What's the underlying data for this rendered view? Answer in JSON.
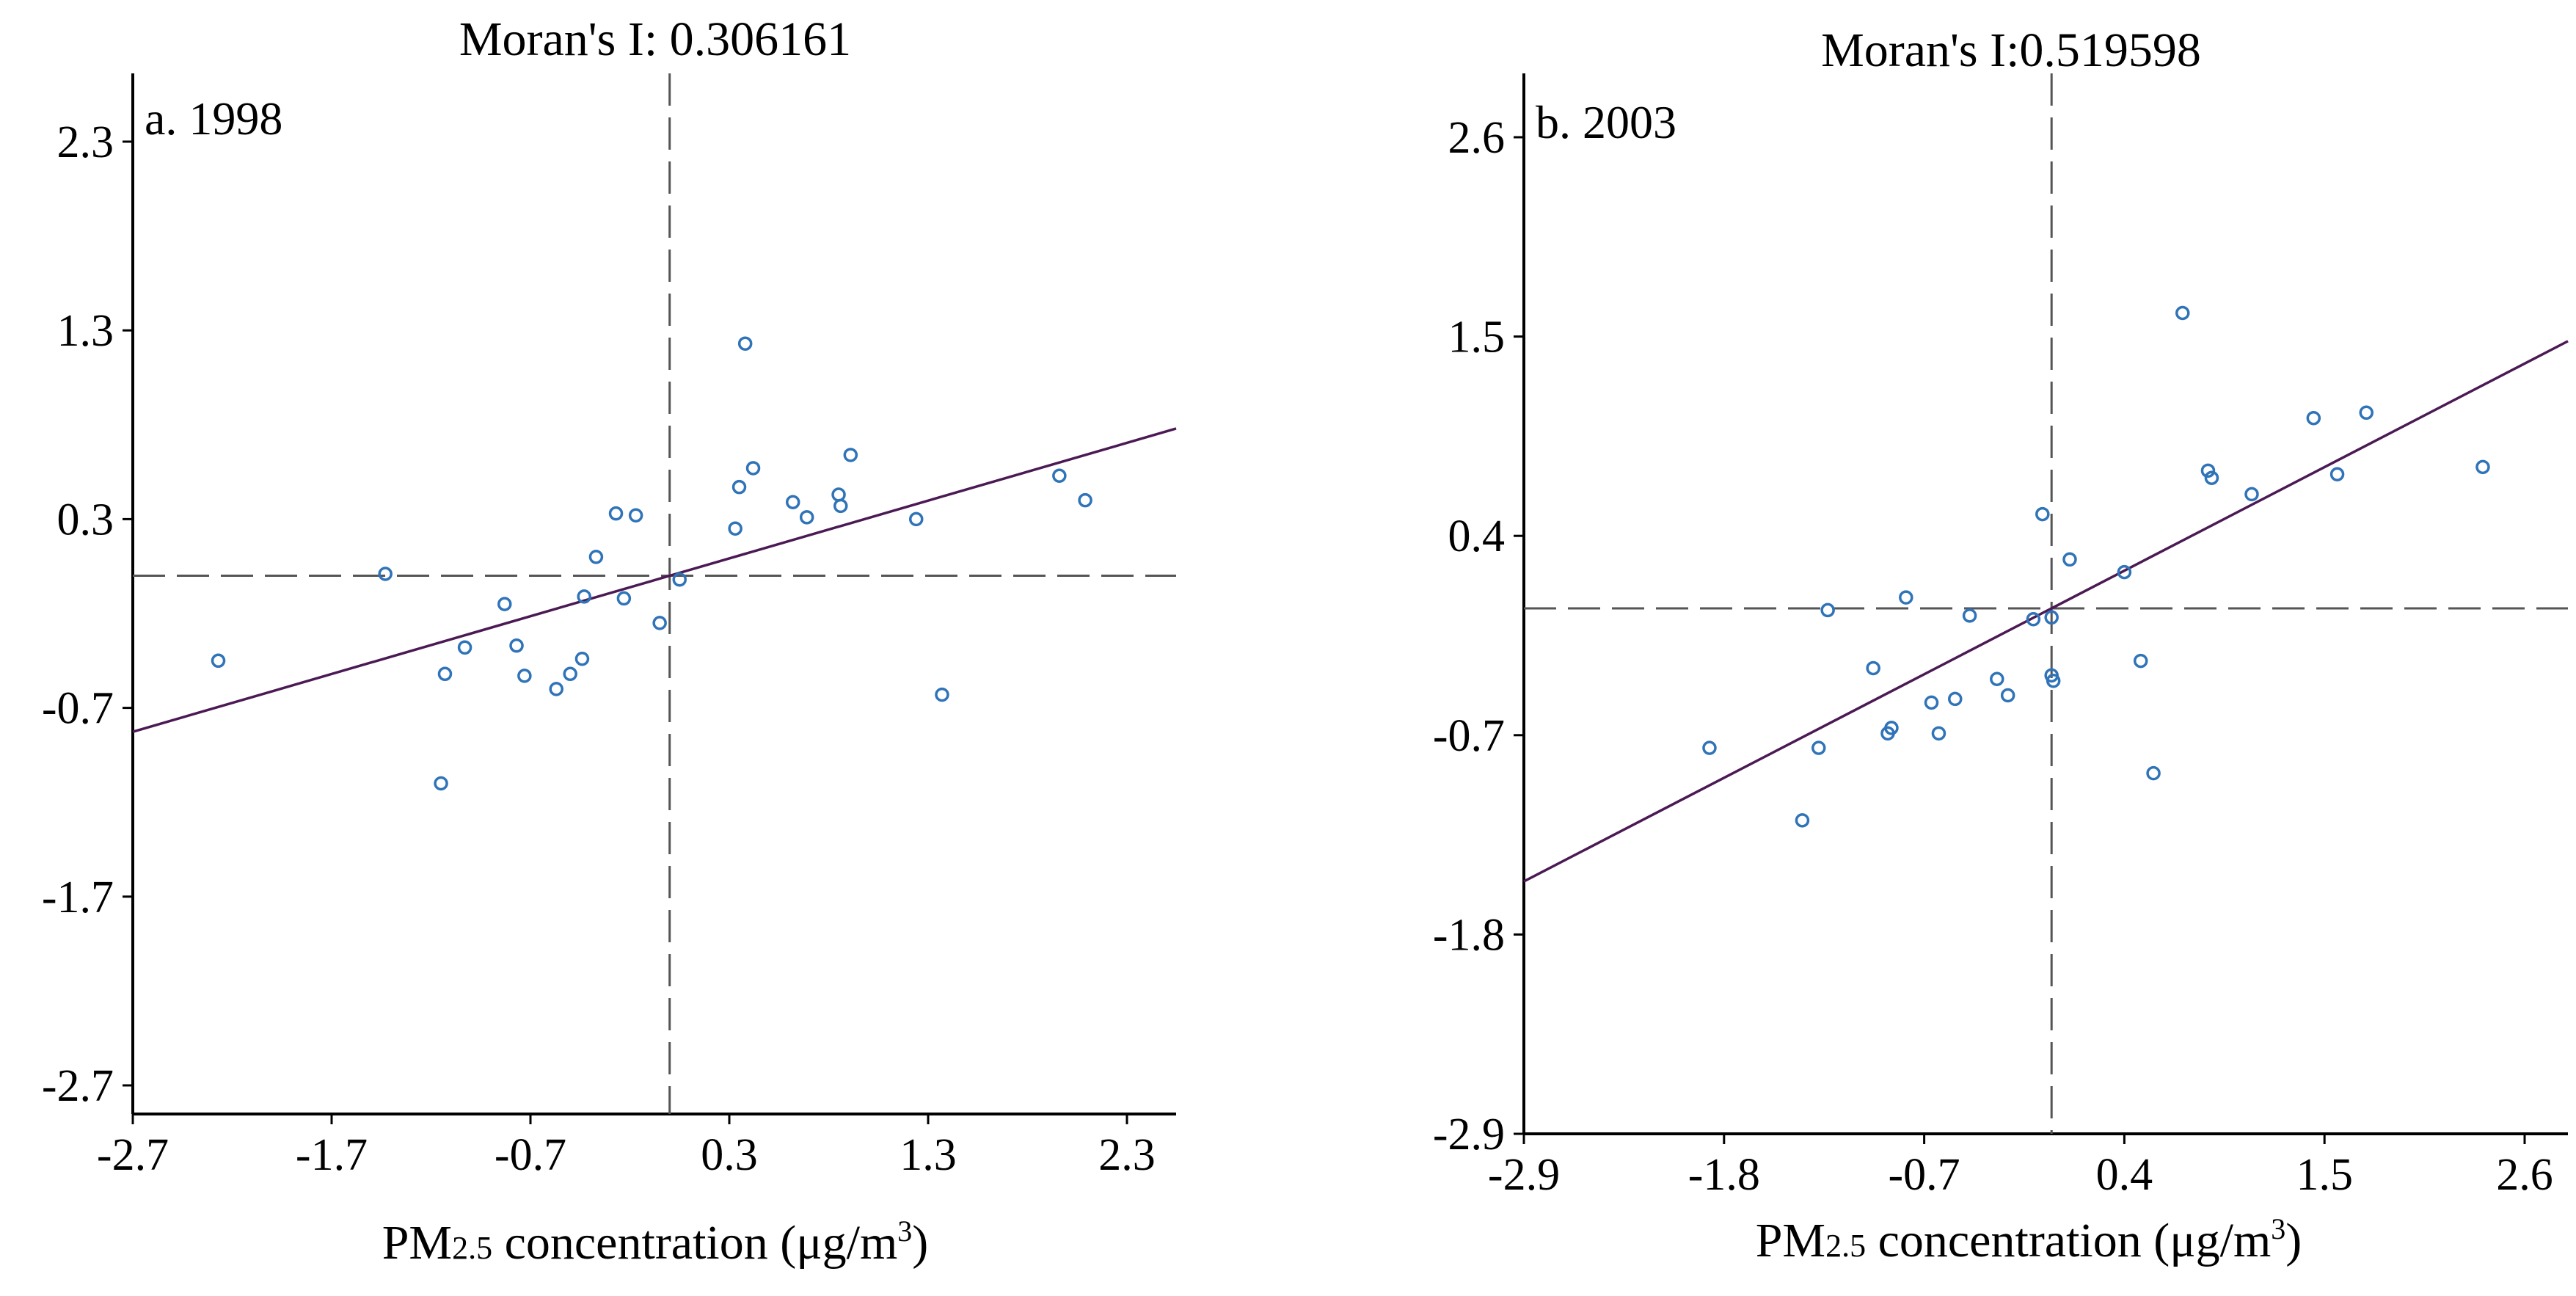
{
  "chart_data": [
    {
      "type": "scatter",
      "panel_label": "a. 1998",
      "title": "Moran's I: 0.306161",
      "xlabel": {
        "prefix": "PM",
        "sub": "2.5",
        "middle": " concentration (μg/m",
        "sup": "3",
        "suffix": ")"
      },
      "ylabel": "",
      "xlim": [
        -2.7,
        2.7
      ],
      "ylim": [
        -2.7,
        2.7
      ],
      "xticks": [
        -2.7,
        -1.7,
        -0.7,
        0.3,
        1.3,
        2.3
      ],
      "xtick_labels": [
        "-2.7",
        "-1.7",
        "-0.7",
        "0.3",
        "1.3",
        "2.3"
      ],
      "yticks": [
        2.3,
        1.3,
        0.3,
        -0.7,
        -1.7,
        -2.7
      ],
      "ytick_labels": [
        "2.3",
        "1.3",
        "0.3",
        "-0.7",
        "-1.7",
        "-2.7"
      ],
      "crosshair": {
        "x": 0,
        "y": 0
      },
      "regression": {
        "slope": 0.306161,
        "intercept": 0
      },
      "series": [
        {
          "name": "observations",
          "points": [
            [
              -2.27,
              -0.45
            ],
            [
              -1.43,
              0.01
            ],
            [
              -1.13,
              -0.52
            ],
            [
              -1.15,
              -1.1
            ],
            [
              -1.03,
              -0.38
            ],
            [
              -0.83,
              -0.15
            ],
            [
              -0.77,
              -0.37
            ],
            [
              -0.73,
              -0.53
            ],
            [
              -0.57,
              -0.6
            ],
            [
              -0.5,
              -0.52
            ],
            [
              -0.44,
              -0.44
            ],
            [
              -0.43,
              -0.11
            ],
            [
              -0.37,
              0.1
            ],
            [
              -0.27,
              0.33
            ],
            [
              -0.23,
              -0.12
            ],
            [
              -0.17,
              0.32
            ],
            [
              -0.05,
              -0.25
            ],
            [
              0.05,
              -0.02
            ],
            [
              0.33,
              0.25
            ],
            [
              0.35,
              0.47
            ],
            [
              0.38,
              1.23
            ],
            [
              0.42,
              0.57
            ],
            [
              0.62,
              0.39
            ],
            [
              0.69,
              0.31
            ],
            [
              0.85,
              0.43
            ],
            [
              0.86,
              0.37
            ],
            [
              0.91,
              0.64
            ],
            [
              1.24,
              0.3
            ],
            [
              1.37,
              -0.63
            ],
            [
              1.96,
              0.53
            ],
            [
              2.09,
              0.4
            ]
          ]
        }
      ]
    },
    {
      "type": "scatter",
      "panel_label": "b. 2003",
      "title": "Moran's I:0.519598",
      "xlabel": {
        "prefix": "PM",
        "sub": "2.5",
        "middle": " concentration (μg/m",
        "sup": "3",
        "suffix": ")"
      },
      "ylabel": "",
      "xlim": [
        -2.9,
        2.9
      ],
      "ylim": [
        -2.9,
        2.9
      ],
      "xticks": [
        -2.9,
        -1.8,
        -0.7,
        0.4,
        1.5,
        2.6
      ],
      "xtick_labels": [
        "-2.9",
        "-1.8",
        "-0.7",
        "0.4",
        "1.5",
        "2.6"
      ],
      "yticks": [
        2.6,
        1.5,
        0.4,
        -0.7,
        -1.8,
        -2.9
      ],
      "ytick_labels": [
        "2.6",
        "1.5",
        "0.4",
        "-0.7",
        "-1.8",
        "-2.9"
      ],
      "crosshair": {
        "x": 0,
        "y": 0
      },
      "regression": {
        "slope": 0.519598,
        "intercept": 0
      },
      "series": [
        {
          "name": "observations",
          "points": [
            [
              -1.88,
              -0.77
            ],
            [
              -1.37,
              -1.17
            ],
            [
              -1.28,
              -0.77
            ],
            [
              -1.23,
              -0.01
            ],
            [
              -0.98,
              -0.33
            ],
            [
              -0.9,
              -0.69
            ],
            [
              -0.88,
              -0.66
            ],
            [
              -0.8,
              0.06
            ],
            [
              -0.66,
              -0.52
            ],
            [
              -0.62,
              -0.69
            ],
            [
              -0.53,
              -0.5
            ],
            [
              -0.45,
              -0.04
            ],
            [
              -0.3,
              -0.39
            ],
            [
              -0.24,
              -0.48
            ],
            [
              -0.1,
              -0.06
            ],
            [
              -0.05,
              0.52
            ],
            [
              0,
              -0.05
            ],
            [
              0,
              -0.37
            ],
            [
              0.01,
              -0.4
            ],
            [
              0.1,
              0.27
            ],
            [
              0.4,
              0.2
            ],
            [
              0.49,
              -0.29
            ],
            [
              0.56,
              -0.91
            ],
            [
              0.72,
              1.63
            ],
            [
              0.86,
              0.76
            ],
            [
              0.88,
              0.72
            ],
            [
              1.1,
              0.63
            ],
            [
              1.44,
              1.05
            ],
            [
              1.57,
              0.74
            ],
            [
              1.73,
              1.08
            ],
            [
              2.37,
              0.78
            ]
          ]
        }
      ]
    }
  ]
}
